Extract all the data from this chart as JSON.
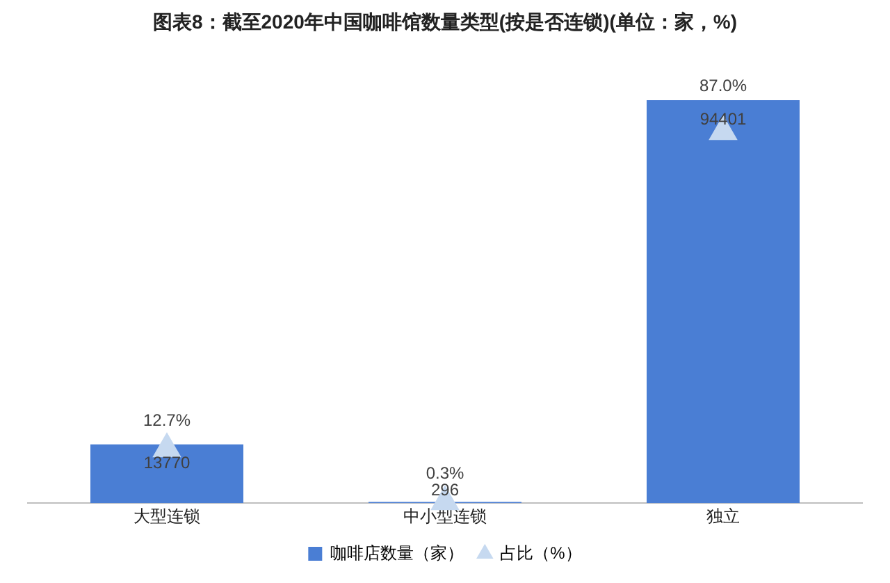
{
  "chart_data": {
    "type": "bar",
    "title": "图表8：截至2020年中国咖啡馆数量类型(按是否连锁)(单位：家，%)",
    "categories": [
      "大型连锁",
      "中小型连锁",
      "独立"
    ],
    "series": [
      {
        "name": "咖啡店数量（家）",
        "color": "#4a7ed4",
        "values": [
          13770,
          296,
          94401
        ],
        "value_labels": [
          "13770",
          "296",
          "94401"
        ]
      },
      {
        "name": "占比（%）",
        "type": "scatter",
        "axis": "y2",
        "color": "#c6d9f0",
        "x": [
          "大型连锁",
          "中小型连锁",
          "独立"
        ],
        "values": [
          12.7,
          0.3,
          87.0
        ],
        "value_labels": [
          "12.7%",
          "0.3%",
          "87.0%"
        ]
      }
    ],
    "tick_labels": "x",
    "grid": false,
    "legend": "bottom",
    "marker": "triangle"
  }
}
